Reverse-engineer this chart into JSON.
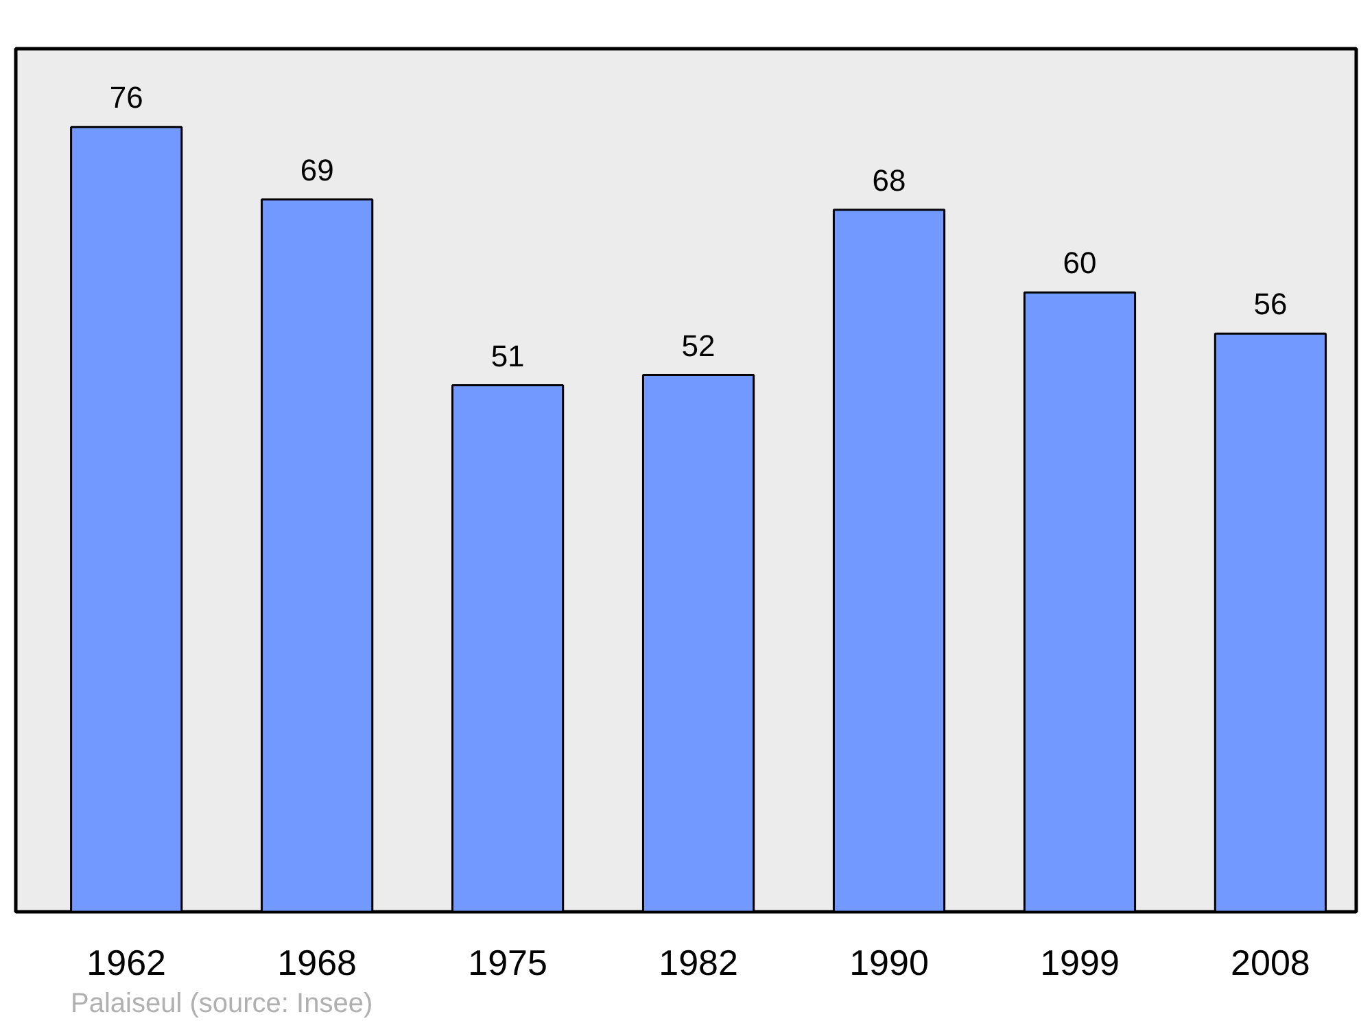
{
  "chart_data": {
    "type": "bar",
    "categories": [
      "1962",
      "1968",
      "1975",
      "1982",
      "1990",
      "1999",
      "2008"
    ],
    "values": [
      76,
      69,
      51,
      52,
      68,
      60,
      56
    ],
    "color": "#7299ff",
    "data_labels": true,
    "grid": false,
    "annotations": [
      "Palaiseul    (source: Insee)"
    ]
  }
}
